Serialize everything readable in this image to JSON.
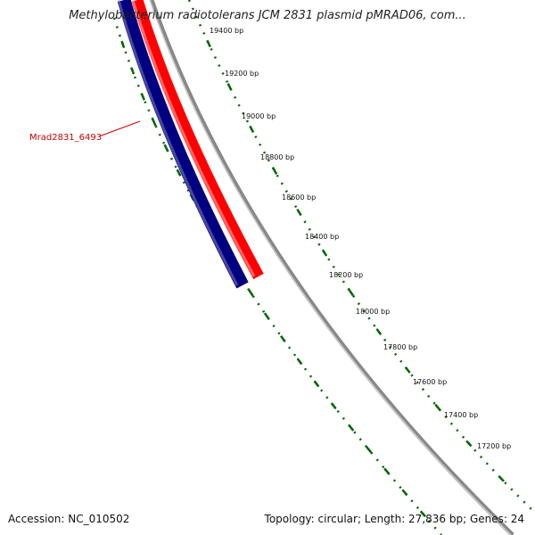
{
  "title": "Methylobacterium radiotolerans JCM 2831 plasmid pMRAD06, com...",
  "accession": "Accession: NC_010502",
  "summary": "Topology: circular; Length: 27,836 bp; Genes: 24",
  "gene_label": "Mrad2831_6493",
  "tick_labels": [
    "19400 bp",
    "19200 bp",
    "19000 bp",
    "18800 bp",
    "18600 bp",
    "18400 bp",
    "18200 bp",
    "18000 bp",
    "17800 bp",
    "17600 bp",
    "17400 bp",
    "17200 bp"
  ],
  "colors": {
    "forward_gene": "#ff0000",
    "reverse_gene": "#000080",
    "backbone": "#888888",
    "ticks": "#006400",
    "label": "#cc0000"
  }
}
